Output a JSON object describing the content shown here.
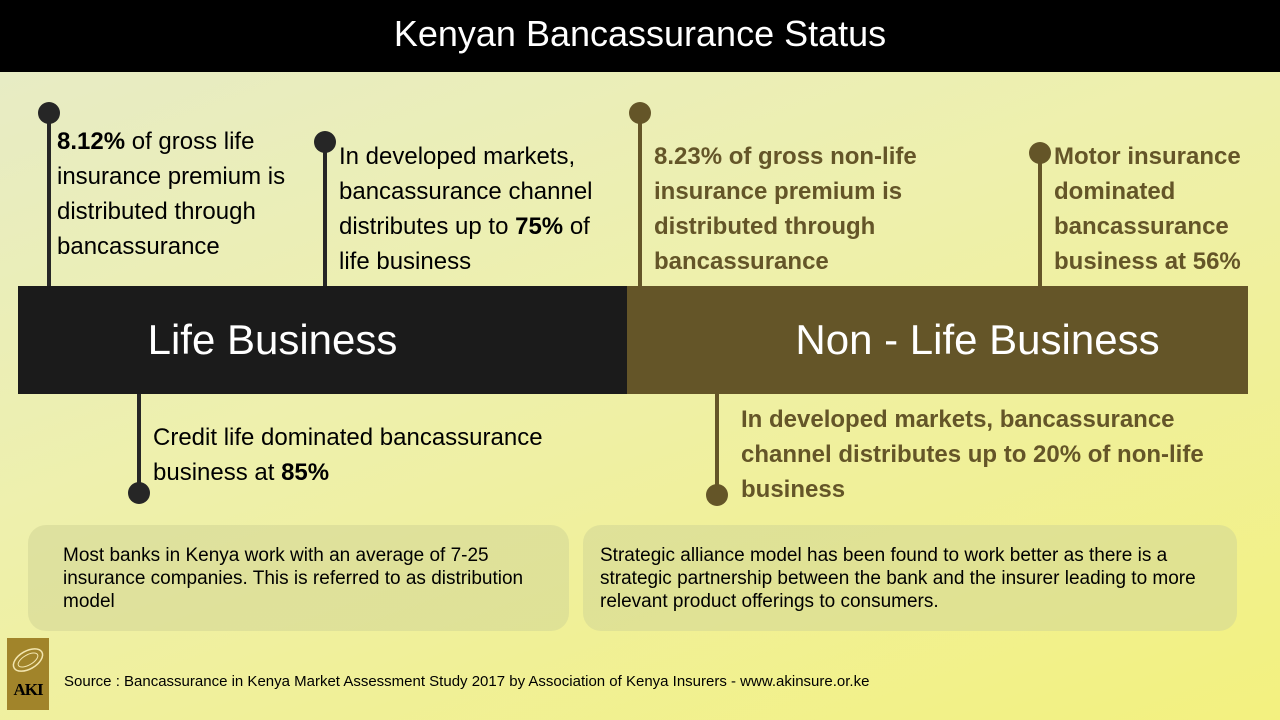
{
  "header": {
    "title": "Kenyan Bancassurance Status"
  },
  "bands": {
    "life": "Life Business",
    "nonlife": "Non - Life Business"
  },
  "facts": {
    "life_top_1": {
      "bold": "8.12%",
      "rest": " of gross life insurance premium is distributed through bancassurance"
    },
    "life_top_2": {
      "pre": "In developed markets, bancassurance channel distributes up to ",
      "bold": "75%",
      "post": " of life business"
    },
    "life_bottom": {
      "pre": "Credit life dominated bancassurance business at ",
      "bold": "85%"
    },
    "nonlife_top_1": "8.23% of gross non-life insurance premium is distributed through bancassurance",
    "nonlife_top_2": "Motor insurance dominated bancassurance business at 56%",
    "nonlife_bottom": "In developed markets, bancassurance channel distributes up to 20% of non-life business"
  },
  "notes": {
    "left": "Most banks in Kenya work with an average of 7-25 insurance companies. This is referred to as distribution model",
    "right": "Strategic alliance model has been found to work better as  there is a strategic partnership between the bank and the insurer leading to more relevant product offerings to consumers."
  },
  "logo": {
    "text": "AKI",
    "icon": "aki-logo-icon"
  },
  "footer": {
    "source": "Source : Bancassurance in Kenya Market Assessment Study 2017 by Association of Kenya Insurers - www.akinsure.or.ke"
  },
  "colors": {
    "dark": "#1b1b1b",
    "brown": "#645528",
    "header_bg": "#000000"
  }
}
